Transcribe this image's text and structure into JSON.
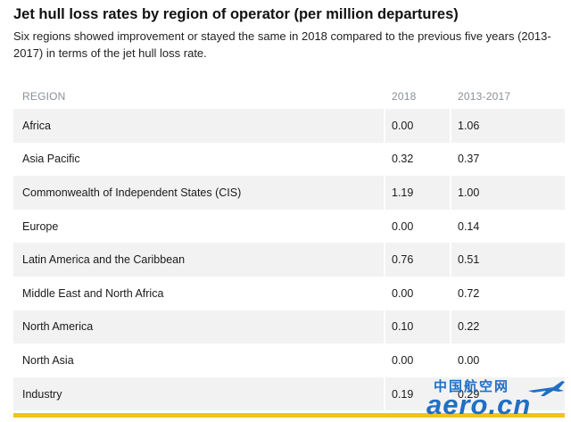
{
  "title": "Jet hull loss rates by region of operator (per million departures)",
  "subtitle": "Six regions showed improvement or stayed the same in 2018 compared to the previous five years (2013-2017) in terms of the jet hull loss rate.",
  "watermark": {
    "cn": "中国航空网",
    "en": "aero.cn",
    "icon": "airplane-icon"
  },
  "colors": {
    "row_shade": "#f2f2f2",
    "header_text": "#8a8f99",
    "bottom_bar": "#f2c21b",
    "watermark": "#1f6fc4"
  },
  "chart_data": {
    "type": "table",
    "columns": [
      "REGION",
      "2018",
      "2013-2017"
    ],
    "rows": [
      [
        "Africa",
        "0.00",
        "1.06"
      ],
      [
        "Asia Pacific",
        "0.32",
        "0.37"
      ],
      [
        "Commonwealth of Independent States (CIS)",
        "1.19",
        "1.00"
      ],
      [
        "Europe",
        "0.00",
        "0.14"
      ],
      [
        "Latin America and the Caribbean",
        "0.76",
        "0.51"
      ],
      [
        "Middle East and North Africa",
        "0.00",
        "0.72"
      ],
      [
        "North America",
        "0.10",
        "0.22"
      ],
      [
        "North Asia",
        "0.00",
        "0.00"
      ],
      [
        "Industry",
        "0.19",
        "0.29"
      ]
    ]
  }
}
